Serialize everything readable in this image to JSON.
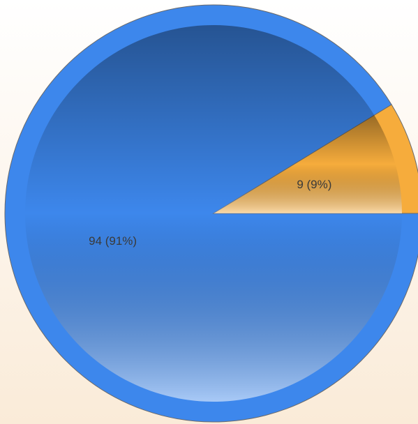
{
  "chart_data": {
    "type": "pie",
    "categories": [
      null,
      null
    ],
    "values": [
      9,
      94
    ],
    "value_labels": [
      "9 (9%)",
      "94 (91%)"
    ],
    "colors": [
      "#f6ac3c",
      "#3d87ec"
    ]
  }
}
